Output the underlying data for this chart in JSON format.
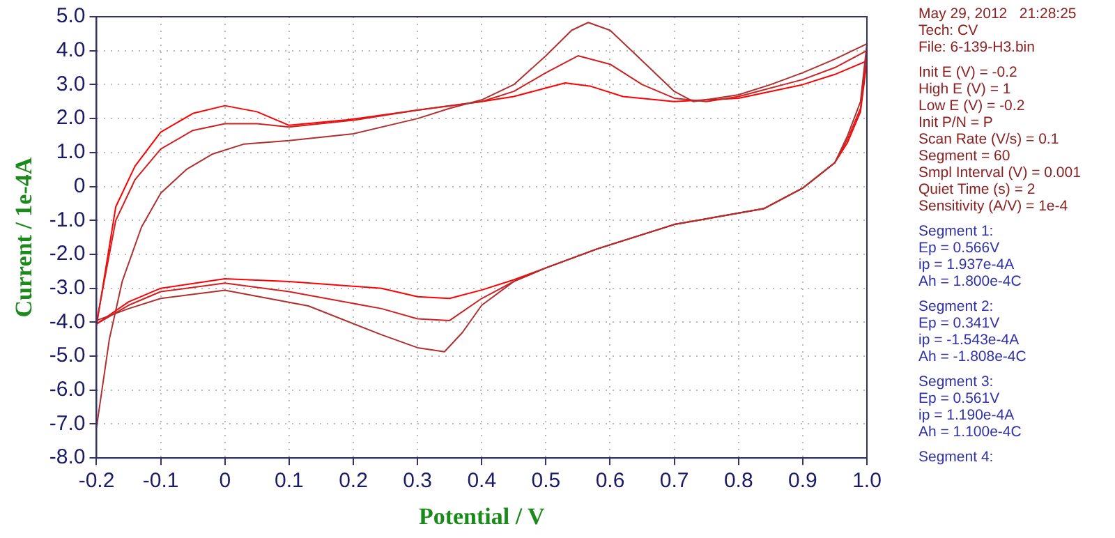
{
  "chart_data": {
    "type": "line",
    "xlabel": "Potential / V",
    "ylabel": "Current / 1e-4A",
    "xlim": [
      -0.2,
      1.0
    ],
    "ylim": [
      -8.0,
      5.0
    ],
    "xticks": [
      -0.2,
      -0.1,
      0,
      0.1,
      0.2,
      0.3,
      0.4,
      0.5,
      0.6,
      0.7,
      0.8,
      0.9,
      {
        "value": 1,
        "label": "1.0"
      }
    ],
    "yticks": [
      {
        "value": 5,
        "label": "5.0"
      },
      {
        "value": 4,
        "label": "4.0"
      },
      {
        "value": 3,
        "label": "3.0"
      },
      {
        "value": 2,
        "label": "2.0"
      },
      {
        "value": 1,
        "label": "1.0"
      },
      0,
      {
        "value": -1,
        "label": "-1.0"
      },
      {
        "value": -2,
        "label": "-2.0"
      },
      {
        "value": -3,
        "label": "-3.0"
      },
      {
        "value": -4,
        "label": "-4.0"
      },
      {
        "value": -5,
        "label": "-5.0"
      },
      {
        "value": -6,
        "label": "-6.0"
      },
      {
        "value": -7,
        "label": "-7.0"
      },
      {
        "value": -8,
        "label": "-8.0"
      }
    ],
    "grid": true,
    "legend": false,
    "series": [
      {
        "color": "#b03030",
        "x": [
          -0.2,
          -0.18,
          -0.16,
          -0.13,
          -0.1,
          -0.06,
          -0.02,
          0.03,
          0.1,
          0.2,
          0.3,
          0.35,
          0.4,
          0.45,
          0.5,
          0.54,
          0.566,
          0.6,
          0.65,
          0.7,
          0.73,
          0.8,
          0.85,
          0.9,
          0.95,
          1.0,
          0.99,
          0.97,
          0.95,
          0.9,
          0.84,
          0.7,
          0.58,
          0.5,
          0.45,
          0.4,
          0.37,
          0.342,
          0.3,
          0.244,
          0.13,
          0.0,
          -0.1,
          -0.15,
          -0.2
        ],
        "values": [
          -7.1,
          -4.5,
          -2.8,
          -1.2,
          -0.2,
          0.5,
          0.95,
          1.25,
          1.35,
          1.55,
          2.0,
          2.3,
          2.55,
          3.0,
          3.85,
          4.6,
          4.83,
          4.6,
          3.7,
          2.8,
          2.5,
          2.7,
          3.0,
          3.35,
          3.75,
          4.2,
          2.5,
          1.5,
          0.7,
          -0.05,
          -0.65,
          -1.12,
          -1.84,
          -2.4,
          -2.8,
          -3.5,
          -4.3,
          -4.87,
          -4.75,
          -4.37,
          -3.52,
          -3.06,
          -3.3,
          -3.6,
          -3.95
        ]
      },
      {
        "color": "#d02020",
        "x": [
          -0.2,
          -0.17,
          -0.14,
          -0.1,
          -0.05,
          0,
          0.05,
          0.1,
          0.2,
          0.3,
          0.4,
          0.45,
          0.5,
          0.55,
          0.6,
          0.65,
          0.7,
          0.75,
          0.8,
          0.9,
          0.95,
          1.0,
          0.99,
          0.97,
          0.95,
          0.9,
          0.84,
          0.7,
          0.58,
          0.5,
          0.45,
          0.4,
          0.35,
          0.3,
          0.244,
          0.1,
          0,
          -0.1,
          -0.15,
          -0.2
        ],
        "values": [
          -4.0,
          -1.0,
          0.2,
          1.1,
          1.65,
          1.85,
          1.85,
          1.75,
          1.95,
          2.25,
          2.5,
          2.8,
          3.35,
          3.85,
          3.6,
          3.0,
          2.6,
          2.5,
          2.65,
          3.15,
          3.5,
          4.0,
          2.3,
          1.4,
          0.7,
          -0.05,
          -0.65,
          -1.12,
          -1.84,
          -2.4,
          -2.8,
          -3.3,
          -3.95,
          -3.9,
          -3.6,
          -3.1,
          -2.85,
          -3.1,
          -3.5,
          -4.05
        ]
      },
      {
        "color": "#ff0000",
        "x": [
          -0.2,
          -0.17,
          -0.14,
          -0.1,
          -0.05,
          0.0,
          0.05,
          0.1,
          0.19,
          0.3,
          0.4,
          0.45,
          0.5,
          0.53,
          0.57,
          0.62,
          0.7,
          0.8,
          0.9,
          0.95,
          1.0,
          0.99,
          0.97,
          0.95,
          0.9,
          0.84,
          0.7,
          0.58,
          0.5,
          0.45,
          0.4,
          0.35,
          0.3,
          0.244,
          0.1,
          0.0,
          -0.1,
          -0.15,
          -0.2
        ],
        "values": [
          -4.1,
          -0.6,
          0.6,
          1.6,
          2.15,
          2.38,
          2.2,
          1.8,
          1.96,
          2.25,
          2.5,
          2.65,
          2.9,
          3.05,
          2.95,
          2.65,
          2.5,
          2.6,
          3.0,
          3.3,
          3.7,
          2.2,
          1.3,
          0.7,
          -0.05,
          -0.65,
          -1.12,
          -1.84,
          -2.4,
          -2.75,
          -3.05,
          -3.3,
          -3.25,
          -3.0,
          -2.8,
          -2.72,
          -3.0,
          -3.4,
          -4.05
        ]
      }
    ],
    "annotations": [
      "May 29, 2012   21:28:25\nTech: CV\nFile: 6-139-H3.bin",
      "Init E (V) = -0.2\nHigh E (V) = 1\nLow E (V) = -0.2\nInit P/N = P\nScan Rate (V/s) = 0.1\nSegment = 60\nSmpl Interval (V) = 0.001\nQuiet Time (s) = 2\nSensitivity (A/V) = 1e-4",
      "Segment 1:\nEp = 0.566V\nip = 1.937e-4A\nAh = 1.800e-4C",
      "Segment 2:\nEp = 0.341V\nip = -1.543e-4A\nAh = -1.808e-4C",
      "Segment 3:\nEp = 0.561V\nip = 1.190e-4A\nAh = 1.100e-4C",
      "Segment 4:"
    ]
  }
}
